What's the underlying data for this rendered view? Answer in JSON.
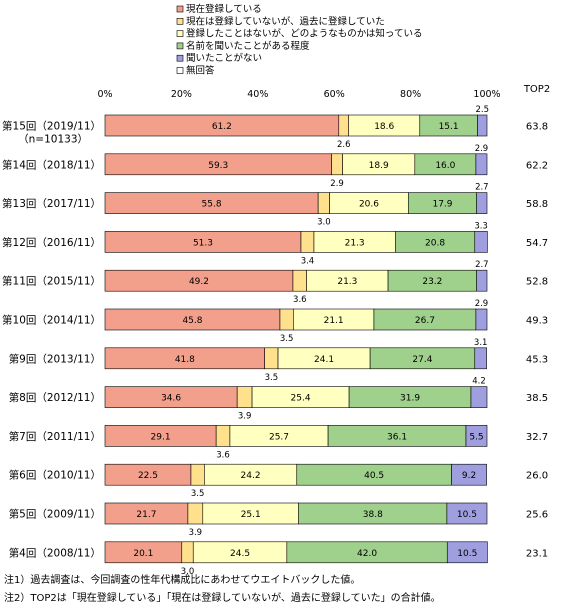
{
  "chart_data": {
    "type": "bar",
    "orientation": "horizontal",
    "stacked": true,
    "normalized": true,
    "legend_position": "top",
    "grid": false,
    "xlim": [
      0,
      100
    ],
    "x_ticks": [
      "0%",
      "20%",
      "40%",
      "60%",
      "80%",
      "100%"
    ],
    "categories": [
      "第15回（2019/11）",
      "第14回（2018/11）",
      "第13回（2017/11）",
      "第12回（2016/11）",
      "第11回（2015/11）",
      "第10回（2014/11）",
      "第9回（2013/11）",
      "第8回（2012/11）",
      "第7回（2011/11）",
      "第6回（2010/11）",
      "第5回（2009/11）",
      "第4回（2008/11）"
    ],
    "category_subtitle": "（n=10133）",
    "series": [
      {
        "name": "現在登録している",
        "color": "#f2a08c",
        "values": [
          61.2,
          59.3,
          55.8,
          51.3,
          49.2,
          45.8,
          41.8,
          34.6,
          29.1,
          22.5,
          21.7,
          20.1
        ]
      },
      {
        "name": "現在は登録していないが、過去に登録していた",
        "color": "#ffe08c",
        "values": [
          2.6,
          2.9,
          3.0,
          3.4,
          3.6,
          3.5,
          3.5,
          3.9,
          3.6,
          3.5,
          3.9,
          3.0
        ]
      },
      {
        "name": "登録したことはないが、どのようなものかは知っている",
        "color": "#ffffc0",
        "values": [
          18.6,
          18.9,
          20.6,
          21.3,
          21.3,
          21.1,
          24.1,
          25.4,
          25.7,
          24.2,
          25.1,
          24.5
        ]
      },
      {
        "name": "名前を聞いたことがある程度",
        "color": "#9fd08c",
        "values": [
          15.1,
          16.0,
          17.9,
          20.8,
          23.2,
          26.7,
          27.4,
          31.9,
          36.1,
          40.5,
          38.8,
          42.0
        ]
      },
      {
        "name": "聞いたことがない",
        "color": "#9f9fdf",
        "values": [
          2.5,
          2.9,
          2.7,
          3.3,
          2.7,
          2.9,
          3.1,
          4.2,
          5.5,
          9.2,
          10.5,
          10.5
        ]
      },
      {
        "name": "無回答",
        "color": "#ffffff",
        "values": [
          0,
          0,
          0,
          0,
          0,
          0,
          0,
          0,
          0,
          0,
          0,
          0
        ]
      }
    ],
    "top2_header": "TOP2",
    "top2": [
      "63.8",
      "62.2",
      "58.8",
      "54.7",
      "52.8",
      "49.3",
      "45.3",
      "38.5",
      "32.7",
      "26.0",
      "25.6",
      "23.1"
    ],
    "notes": [
      "注1）過去調査は、今回調査の性年代構成比にあわせてウエイトバックした値。",
      "注2）TOP2は「現在登録している」「現在は登録していないが、過去に登録していた」の合計値。"
    ]
  }
}
